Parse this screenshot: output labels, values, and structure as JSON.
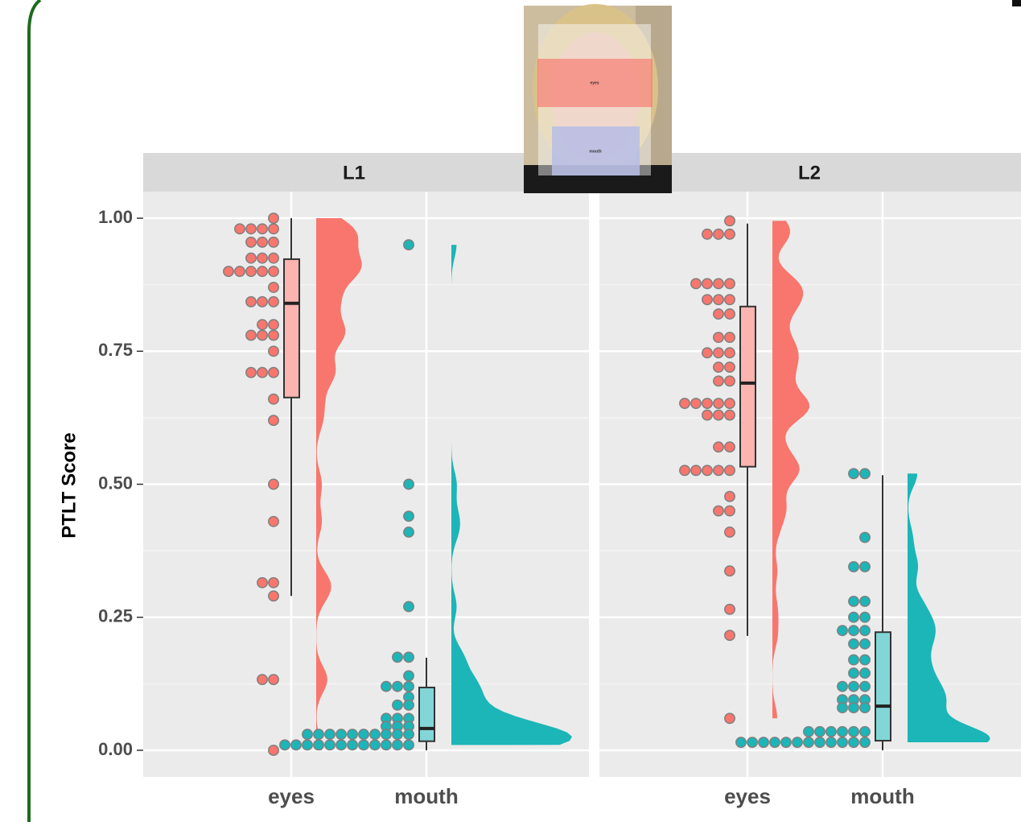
{
  "chart_data": {
    "type": "raincloud",
    "y_label": "PTLT Score",
    "ylim": [
      -0.05,
      1.05
    ],
    "yticks": [
      {
        "value": 0,
        "label": "0.00"
      },
      {
        "value": 0.25,
        "label": "0.25"
      },
      {
        "value": 0.5,
        "label": "0.50"
      },
      {
        "value": 0.75,
        "label": "0.75"
      },
      {
        "value": 1,
        "label": "1.00"
      }
    ],
    "categories": [
      "eyes",
      "mouth"
    ],
    "colors": [
      "#f8766d",
      "#1cb5b8"
    ],
    "grid": true,
    "inset_labels": [
      "eyes",
      "mouth"
    ],
    "facets": [
      {
        "title": "L1",
        "groups": [
          {
            "values": [
              1.0,
              0.98,
              0.98,
              0.98,
              0.98,
              0.955,
              0.955,
              0.955,
              0.925,
              0.925,
              0.925,
              0.9,
              0.9,
              0.9,
              0.9,
              0.9,
              0.87,
              0.843,
              0.843,
              0.843,
              0.8,
              0.8,
              0.78,
              0.78,
              0.78,
              0.75,
              0.71,
              0.71,
              0.71,
              0.66,
              0.62,
              0.5,
              0.43,
              0.315,
              0.315,
              0.29,
              0.133,
              0.133,
              0.0
            ],
            "box": {
              "min": 0.29,
              "q1": 0.663,
              "median": 0.84,
              "q3": 0.923,
              "max": 1.0
            }
          },
          {
            "values": [
              0.95,
              0.5,
              0.44,
              0.41,
              0.27,
              0.175,
              0.175,
              0.14,
              0.12,
              0.12,
              0.12,
              0.1,
              0.085,
              0.085,
              0.06,
              0.06,
              0.06,
              0.045,
              0.045,
              0.045,
              0.03,
              0.03,
              0.03,
              0.03,
              0.03,
              0.03,
              0.03,
              0.03,
              0.03,
              0.03,
              0.01,
              0.01,
              0.01,
              0.01,
              0.01,
              0.01,
              0.01,
              0.01,
              0.01,
              0.01,
              0.01,
              0.01
            ],
            "box": {
              "min": 0.0,
              "q1": 0.017,
              "median": 0.041,
              "q3": 0.118,
              "max": 0.174
            }
          }
        ]
      },
      {
        "title": "L2",
        "groups": [
          {
            "values": [
              0.995,
              0.97,
              0.97,
              0.97,
              0.877,
              0.877,
              0.877,
              0.877,
              0.847,
              0.847,
              0.847,
              0.82,
              0.82,
              0.776,
              0.776,
              0.747,
              0.747,
              0.747,
              0.72,
              0.72,
              0.694,
              0.694,
              0.652,
              0.652,
              0.652,
              0.652,
              0.652,
              0.63,
              0.63,
              0.63,
              0.57,
              0.57,
              0.526,
              0.526,
              0.526,
              0.526,
              0.526,
              0.477,
              0.45,
              0.45,
              0.41,
              0.337,
              0.265,
              0.216,
              0.06
            ],
            "box": {
              "min": 0.215,
              "q1": 0.533,
              "median": 0.69,
              "q3": 0.834,
              "max": 0.99
            }
          },
          {
            "values": [
              0.52,
              0.52,
              0.4,
              0.345,
              0.345,
              0.28,
              0.28,
              0.25,
              0.25,
              0.225,
              0.225,
              0.225,
              0.2,
              0.2,
              0.17,
              0.17,
              0.145,
              0.145,
              0.12,
              0.12,
              0.12,
              0.095,
              0.095,
              0.095,
              0.08,
              0.08,
              0.08,
              0.035,
              0.035,
              0.035,
              0.035,
              0.035,
              0.035,
              0.015,
              0.015,
              0.015,
              0.015,
              0.015,
              0.015,
              0.015,
              0.015,
              0.015,
              0.015,
              0.015,
              0.015
            ],
            "box": {
              "min": 0.0,
              "q1": 0.018,
              "median": 0.083,
              "q3": 0.222,
              "max": 0.517
            }
          }
        ]
      }
    ]
  }
}
